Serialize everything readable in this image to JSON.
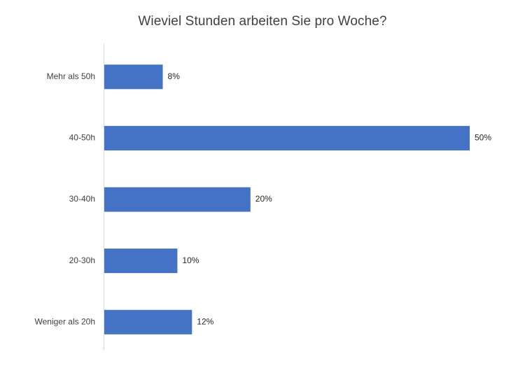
{
  "chart_data": {
    "type": "bar",
    "orientation": "horizontal",
    "title": "Wieviel Stunden arbeiten Sie pro Woche?",
    "xlabel": "",
    "ylabel": "",
    "categories": [
      "Mehr als 50h",
      "40-50h",
      "30-40h",
      "20-30h",
      "Weniger als 20h"
    ],
    "values": [
      8,
      50,
      20,
      10,
      12
    ],
    "data_labels": [
      "8%",
      "50%",
      "20%",
      "10%",
      "12%"
    ],
    "unit": "%",
    "xlim": [
      0,
      50
    ],
    "grid": false,
    "legend": "none",
    "colors": {
      "bar": "#4472c4",
      "axis": "#d9d9d9",
      "text": "#404040",
      "label": "#262626"
    }
  }
}
